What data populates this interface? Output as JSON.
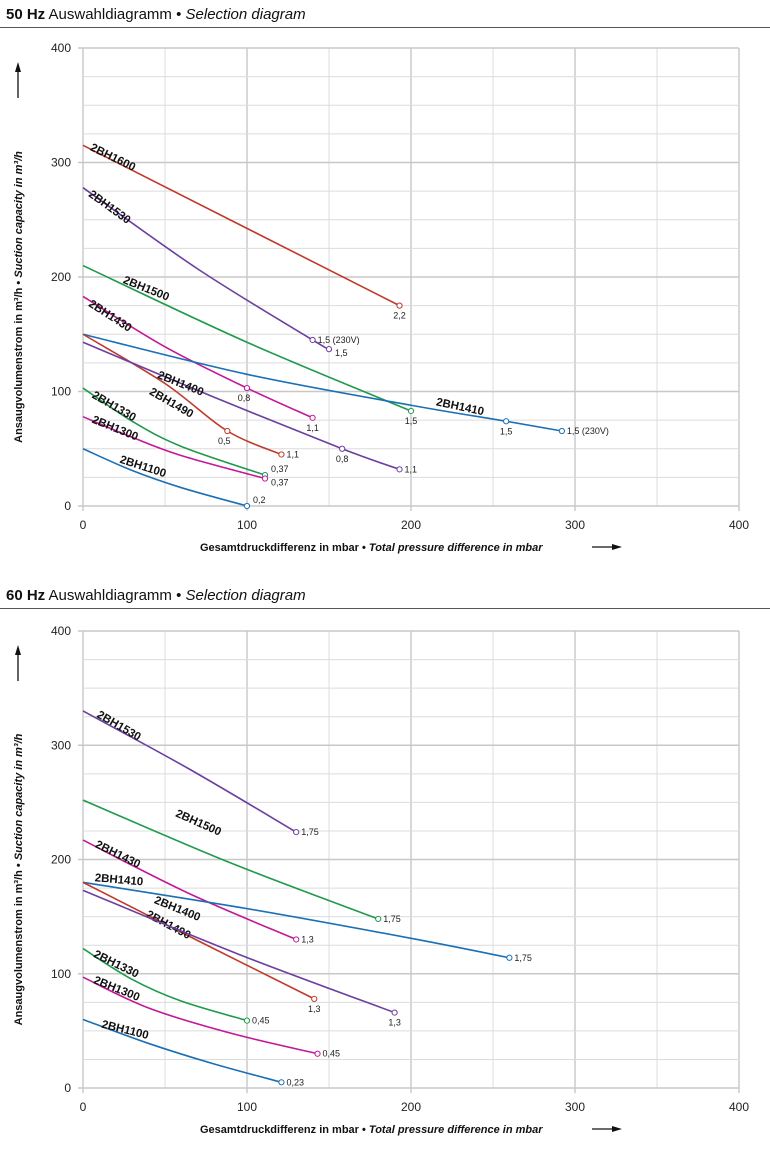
{
  "sections": [
    {
      "title_bold": "50 Hz",
      "title_regular": "Auswahldiagramm •",
      "title_italic": "Selection diagram"
    },
    {
      "title_bold": "60 Hz",
      "title_regular": "Auswahldiagramm •",
      "title_italic": "Selection diagram"
    }
  ],
  "colors": {
    "red": "#c0392b",
    "purple": "#6b3fa0",
    "green": "#1e9a4a",
    "magenta": "#c2189a",
    "blue": "#1a6fb5",
    "grid": "#dcdcdc",
    "grid_major": "#c8c8c8"
  },
  "chart_data": [
    {
      "type": "line",
      "title": "50 Hz Auswahldiagramm • Selection diagram",
      "xlabel_regular": "Gesamtdruckdifferenz in mbar •",
      "xlabel_italic": "Total pressure difference in mbar",
      "ylabel_regular": "Ansaugvolumenstrom in m³/h •",
      "ylabel_italic": "Suction capacity in m³/h",
      "xlim": [
        0,
        400
      ],
      "ylim": [
        0,
        400
      ],
      "xticks": [
        0,
        100,
        200,
        300,
        400
      ],
      "yticks": [
        0,
        100,
        200,
        300,
        400
      ],
      "grid": true,
      "series": [
        {
          "name": "2BH1600",
          "color": "red",
          "points": [
            [
              0,
              315
            ],
            [
              193,
              175
            ]
          ],
          "markers": [
            {
              "x": 193,
              "y": 175,
              "label": "2,2",
              "pos": "below"
            }
          ]
        },
        {
          "name": "2BH1530",
          "color": "purple",
          "points": [
            [
              0,
              278
            ],
            [
              70,
              207
            ],
            [
              140,
              145
            ],
            [
              150,
              137
            ]
          ],
          "markers": [
            {
              "x": 140,
              "y": 145,
              "label": "1,5 (230V)",
              "pos": "right"
            },
            {
              "x": 150,
              "y": 137,
              "label": "1,5",
              "pos": "right-below"
            }
          ]
        },
        {
          "name": "2BH1500",
          "color": "green",
          "points": [
            [
              0,
              210
            ],
            [
              100,
              143
            ],
            [
              200,
              83
            ]
          ],
          "markers": [
            {
              "x": 200,
              "y": 83,
              "label": "1,5",
              "pos": "below"
            }
          ]
        },
        {
          "name": "2BH1430",
          "color": "magenta",
          "points": [
            [
              0,
              183
            ],
            [
              50,
              139
            ],
            [
              100,
              103
            ],
            [
              140,
              77
            ]
          ],
          "markers": [
            {
              "x": 100,
              "y": 103,
              "label": "0,8",
              "pos": "below-left"
            },
            {
              "x": 140,
              "y": 77,
              "label": "1,1",
              "pos": "below"
            }
          ]
        },
        {
          "name": "2BH1410",
          "color": "blue",
          "points": [
            [
              0,
              150
            ],
            [
              100,
              115
            ],
            [
              200,
              88
            ],
            [
              258,
              74
            ],
            [
              292,
              65.5
            ]
          ],
          "markers": [
            {
              "x": 258,
              "y": 74,
              "label": "1,5",
              "pos": "below"
            },
            {
              "x": 292,
              "y": 65.5,
              "label": "1,5 (230V)",
              "pos": "right"
            }
          ]
        },
        {
          "name": "2BH1490",
          "color": "red",
          "points": [
            [
              0,
              150
            ],
            [
              50,
              107
            ],
            [
              88,
              65.5
            ],
            [
              121,
              45
            ]
          ],
          "markers": [
            {
              "x": 88,
              "y": 65.5,
              "label": "0,5",
              "pos": "below-left"
            },
            {
              "x": 121,
              "y": 45,
              "label": "1,1",
              "pos": "right"
            }
          ]
        },
        {
          "name": "2BH1400",
          "color": "purple",
          "points": [
            [
              0,
              143
            ],
            [
              80,
              95
            ],
            [
              158,
              50
            ],
            [
              193,
              32
            ]
          ],
          "markers": [
            {
              "x": 158,
              "y": 50,
              "label": "0,8",
              "pos": "below"
            },
            {
              "x": 193,
              "y": 32,
              "label": "1,1",
              "pos": "right"
            }
          ]
        },
        {
          "name": "2BH1330",
          "color": "green",
          "points": [
            [
              0,
              103
            ],
            [
              30,
              74
            ],
            [
              60,
              52
            ],
            [
              111,
              27
            ]
          ],
          "markers": [
            {
              "x": 111,
              "y": 27,
              "label": "0,37",
              "pos": "right-above"
            }
          ]
        },
        {
          "name": "2BH1300",
          "color": "magenta",
          "points": [
            [
              0,
              78
            ],
            [
              30,
              60
            ],
            [
              60,
              44
            ],
            [
              111,
              24
            ]
          ],
          "markers": [
            {
              "x": 111,
              "y": 24,
              "label": "0,37",
              "pos": "right-below"
            }
          ]
        },
        {
          "name": "2BH1100",
          "color": "blue",
          "points": [
            [
              0,
              50
            ],
            [
              30,
              31
            ],
            [
              60,
              16
            ],
            [
              100,
              0
            ]
          ],
          "markers": [
            {
              "x": 100,
              "y": 0,
              "label": "0,2",
              "pos": "right-above"
            }
          ]
        }
      ]
    },
    {
      "type": "line",
      "title": "60 Hz Auswahldiagramm • Selection diagram",
      "xlabel_regular": "Gesamtdruckdifferenz in mbar •",
      "xlabel_italic": "Total pressure difference in mbar",
      "ylabel_regular": "Ansaugvolumenstrom in m³/h •",
      "ylabel_italic": "Suction capacity in m³/h",
      "xlim": [
        0,
        400
      ],
      "ylim": [
        0,
        400
      ],
      "xticks": [
        0,
        100,
        200,
        300,
        400
      ],
      "yticks": [
        0,
        100,
        200,
        300,
        400
      ],
      "grid": true,
      "series": [
        {
          "name": "2BH1530",
          "color": "purple",
          "points": [
            [
              0,
              330
            ],
            [
              65,
              279
            ],
            [
              130,
              224
            ]
          ],
          "markers": [
            {
              "x": 130,
              "y": 224,
              "label": "1,75",
              "pos": "right"
            }
          ]
        },
        {
          "name": "2BH1500",
          "color": "green",
          "points": [
            [
              0,
              252
            ],
            [
              90,
              197
            ],
            [
              180,
              148
            ]
          ],
          "markers": [
            {
              "x": 180,
              "y": 148,
              "label": "1,75",
              "pos": "right"
            }
          ]
        },
        {
          "name": "2BH1430",
          "color": "magenta",
          "points": [
            [
              0,
              217
            ],
            [
              65,
              170
            ],
            [
              130,
              130
            ]
          ],
          "markers": [
            {
              "x": 130,
              "y": 130,
              "label": "1,3",
              "pos": "right"
            }
          ]
        },
        {
          "name": "2BH1410",
          "color": "blue",
          "points": [
            [
              0,
              180
            ],
            [
              100,
              157
            ],
            [
              200,
              131
            ],
            [
              260,
              114
            ]
          ],
          "markers": [
            {
              "x": 260,
              "y": 114,
              "label": "1,75",
              "pos": "right"
            }
          ]
        },
        {
          "name": "2BH1490",
          "color": "red",
          "points": [
            [
              0,
              180
            ],
            [
              70,
              129
            ],
            [
              141,
              78
            ]
          ],
          "markers": [
            {
              "x": 141,
              "y": 78,
              "label": "1,3",
              "pos": "below"
            }
          ]
        },
        {
          "name": "2BH1400",
          "color": "purple",
          "points": [
            [
              0,
              173
            ],
            [
              95,
              117
            ],
            [
              190,
              66
            ]
          ],
          "markers": [
            {
              "x": 190,
              "y": 66,
              "label": "1,3",
              "pos": "below"
            }
          ]
        },
        {
          "name": "2BH1330",
          "color": "green",
          "points": [
            [
              0,
              122
            ],
            [
              30,
              95
            ],
            [
              60,
              76
            ],
            [
              100,
              59
            ]
          ],
          "markers": [
            {
              "x": 100,
              "y": 59,
              "label": "0,45",
              "pos": "right"
            }
          ]
        },
        {
          "name": "2BH1300",
          "color": "magenta",
          "points": [
            [
              0,
              97
            ],
            [
              40,
              70
            ],
            [
              90,
              48
            ],
            [
              143,
              30
            ]
          ],
          "markers": [
            {
              "x": 143,
              "y": 30,
              "label": "0,45",
              "pos": "right"
            }
          ]
        },
        {
          "name": "2BH1100",
          "color": "blue",
          "points": [
            [
              0,
              60
            ],
            [
              40,
              39
            ],
            [
              80,
              21
            ],
            [
              121,
              5
            ]
          ],
          "markers": [
            {
              "x": 121,
              "y": 5,
              "label": "0,23",
              "pos": "right"
            }
          ]
        }
      ]
    }
  ]
}
